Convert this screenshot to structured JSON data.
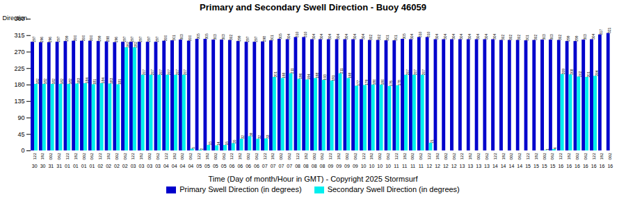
{
  "chart_data": {
    "type": "bar",
    "title": "Primary and Secondary Swell Direction - Buoy 46059",
    "xlabel": "Time (Day of month/Hour in GMT) - Copyright 2025 Stormsurf",
    "ylabel": "Direction",
    "categories": [
      "122",
      "182",
      "002",
      "062",
      "122",
      "182",
      "002",
      "062",
      "122",
      "182",
      "002",
      "062",
      "122",
      "182",
      "002",
      "062",
      "122",
      "182",
      "002",
      "062",
      "122",
      "182",
      "002",
      "062",
      "122",
      "182",
      "002",
      "062",
      "122",
      "182",
      "002",
      "062",
      "122",
      "182",
      "002",
      "062",
      "122",
      "182",
      "002",
      "062",
      "122",
      "182",
      "002",
      "062",
      "122",
      "182",
      "002",
      "062",
      "122",
      "182",
      "002",
      "062",
      "122",
      "182",
      "002",
      "062",
      "122",
      "182",
      "002",
      "062",
      "122",
      "182",
      "002",
      "062",
      "122",
      "182",
      "002",
      "062",
      "122",
      "182",
      "002"
    ],
    "sub_categories": [
      "30",
      "30",
      "31",
      "31",
      "01",
      "01",
      "01",
      "01",
      "02",
      "02",
      "02",
      "02",
      "03",
      "03",
      "03",
      "03",
      "04",
      "04",
      "04",
      "04",
      "05",
      "05",
      "05",
      "05",
      "06",
      "06",
      "06",
      "06",
      "07",
      "07",
      "07",
      "07",
      "08",
      "08",
      "08",
      "08",
      "09",
      "09",
      "09",
      "09",
      "10",
      "10",
      "10",
      "10",
      "11",
      "11",
      "11",
      "11",
      "12",
      "12",
      "12",
      "12",
      "13",
      "13",
      "13",
      "13",
      "14",
      "14",
      "14",
      "14",
      "15",
      "15",
      "15",
      "15",
      "16",
      "16",
      "16",
      "16",
      "16",
      "16",
      "16"
    ],
    "series": [
      {
        "name": "Primary Swell Direction (in degrees)",
        "color": "#0000CC",
        "values": [
          297,
          296,
          296,
          297,
          299,
          300,
          300,
          300,
          299,
          298,
          296,
          297,
          297,
          297,
          297,
          297,
          300,
          301,
          303,
          300,
          305,
          305,
          303,
          303,
          302,
          299,
          297,
          297,
          298,
          301,
          305,
          304,
          310,
          310,
          304,
          304,
          304,
          304,
          304,
          304,
          304,
          302,
          302,
          301,
          301,
          305,
          304,
          310,
          310,
          304,
          304,
          304,
          304,
          304,
          304,
          304,
          304,
          302,
          302,
          302,
          301,
          302,
          303,
          303,
          302,
          299,
          299,
          303,
          304,
          317,
          321
        ]
      },
      {
        "name": "Secondary Swell Direction (in degrees)",
        "color": "#00EEEE",
        "values": [
          182,
          182,
          182,
          182,
          182,
          183,
          184,
          181,
          184,
          183,
          181,
          282,
          282,
          207,
          207,
          207,
          207,
          207,
          207,
          5,
          2,
          15,
          14,
          15,
          20,
          32,
          39,
          32,
          33,
          201,
          198,
          211,
          196,
          194,
          198,
          193,
          191,
          211,
          198,
          177,
          179,
          180,
          180,
          176,
          178,
          207,
          207,
          207,
          21,
          0,
          0,
          0,
          0,
          0,
          0,
          0,
          0,
          0,
          0,
          0,
          0,
          0,
          1,
          4,
          209,
          208,
          202,
          201,
          204,
          null,
          null
        ]
      }
    ],
    "ylim": [
      0,
      360
    ],
    "yticks": [
      0,
      45,
      90,
      135,
      180,
      225,
      270,
      315,
      360
    ],
    "grid": false,
    "legend": "bottom",
    "data_labels": true
  }
}
